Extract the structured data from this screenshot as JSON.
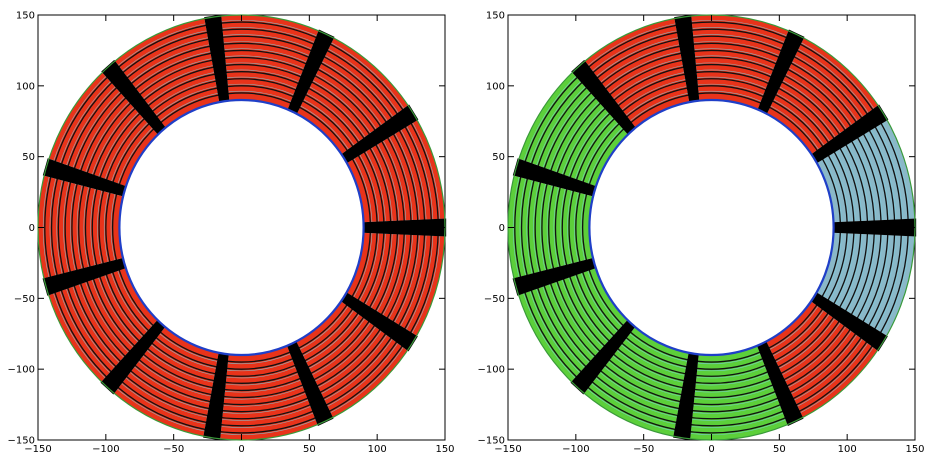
{
  "chart_data": [
    {
      "type": "scatter",
      "title": "",
      "xlabel": "",
      "ylabel": "",
      "xlim": [
        -150,
        150
      ],
      "ylim": [
        -150,
        150
      ],
      "x_ticks": [
        -150,
        -100,
        -50,
        0,
        50,
        100,
        150
      ],
      "y_ticks": [
        -150,
        -100,
        -50,
        0,
        50,
        100,
        150
      ],
      "grid": false,
      "legend": "none",
      "annulus": {
        "inner_radius": 90,
        "outer_radius": 150,
        "ring_count": 12
      },
      "gap_angles_deg": [
        0,
        32.7,
        65.4,
        98.1,
        130.8,
        163.5,
        196.2,
        228.9,
        261.6,
        294.3,
        327.0
      ],
      "segment_colors": [
        "#e8331a",
        "#e8331a",
        "#e8331a",
        "#e8331a",
        "#e8331a",
        "#e8331a",
        "#e8331a",
        "#e8331a",
        "#e8331a",
        "#e8331a",
        "#e8331a"
      ],
      "colors": {
        "ring_line": "#7ccfe0",
        "inner_edge": "#1f3fc8",
        "gap": "#000000",
        "outer_edge": "#3a9a3a"
      }
    },
    {
      "type": "scatter",
      "title": "",
      "xlabel": "",
      "ylabel": "",
      "xlim": [
        -150,
        150
      ],
      "ylim": [
        -150,
        150
      ],
      "x_ticks": [
        -150,
        -100,
        -50,
        0,
        50,
        100,
        150
      ],
      "y_ticks": [
        -150,
        -100,
        -50,
        0,
        50,
        100,
        150
      ],
      "grid": false,
      "legend": "none",
      "annulus": {
        "inner_radius": 90,
        "outer_radius": 150,
        "ring_count": 12
      },
      "gap_angles_deg": [
        0,
        32.7,
        65.4,
        98.1,
        130.8,
        163.5,
        196.2,
        228.9,
        261.6,
        294.3,
        327.0
      ],
      "segment_colors": [
        "#8ab8c8",
        "#e8331a",
        "#e8331a",
        "#e8331a",
        "#5ccf3a",
        "#5ccf3a",
        "#5ccf3a",
        "#5ccf3a",
        "#5ccf3a",
        "#e8331a",
        "#8ab8c8"
      ],
      "colors": {
        "ring_line": "#7ccfe0",
        "inner_edge": "#1f3fc8",
        "gap": "#000000",
        "outer_edge": "#3a9a3a"
      }
    }
  ]
}
